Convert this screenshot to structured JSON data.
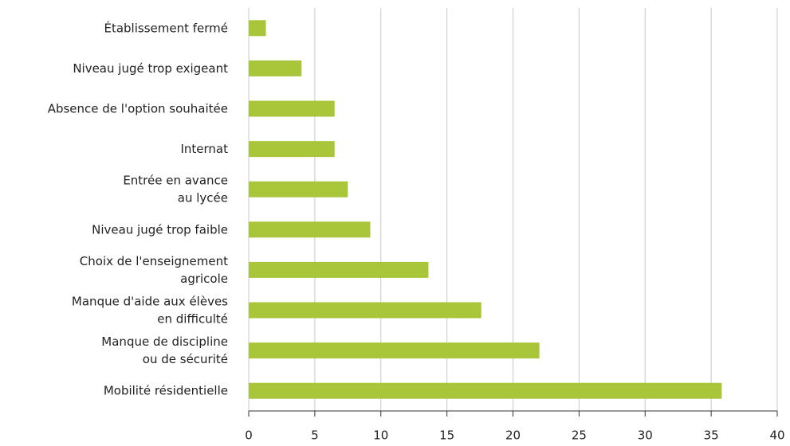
{
  "chart_data": {
    "type": "barh",
    "categories": [
      "Établissement fermé",
      "Niveau jugé trop exigeant",
      "Absence de l'option souhaitée",
      "Internat",
      "Entrée en avance\nau lycée",
      "Niveau jugé trop faible",
      "Choix de l'enseignement\nagricole",
      "Manque d'aide aux élèves\nen difficulté",
      "Manque de discipline\nou de sécurité",
      "Mobilité résidentielle"
    ],
    "values": [
      1.3,
      4.0,
      6.5,
      6.5,
      7.5,
      9.2,
      13.6,
      17.6,
      22,
      35.8
    ],
    "color": "#a9c63a",
    "xlim": [
      0,
      40
    ],
    "xticks": [
      0,
      5,
      10,
      15,
      20,
      25,
      30,
      35,
      40
    ],
    "grid": true
  }
}
